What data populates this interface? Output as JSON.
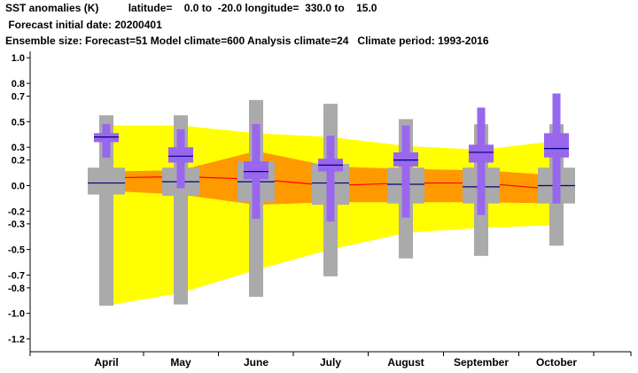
{
  "header": {
    "line1": "SST anomalies (K)          latitude=    0.0 to  -20.0 longitude=  330.0 to    15.0",
    "line2": " Forecast initial date: 20200401",
    "line3": "Ensemble size: Forecast=51 Model climate=600 Analysis climate=24   Climate period: 1993-2016"
  },
  "chart_data": {
    "type": "box",
    "title": "SST anomalies (K)",
    "xlabel": "",
    "ylabel": "",
    "categories": [
      "April",
      "May",
      "June",
      "July",
      "August",
      "September",
      "October"
    ],
    "ylim": [
      -1.3,
      1.05
    ],
    "yticks": [
      1.0,
      0.8,
      0.7,
      0.5,
      0.3,
      0.2,
      0.0,
      -0.2,
      -0.3,
      -0.5,
      -0.7,
      -0.8,
      -1.0,
      -1.2
    ],
    "ytick_labels": [
      "1.0",
      "0.8",
      "0.7",
      "0.5",
      "0.3",
      "0.2",
      "0.0",
      "-0.2",
      "-0.3",
      "-0.5",
      "-0.7",
      "-0.8",
      "-1.0",
      "-1.2"
    ],
    "colors": {
      "climate_outer": "#ffff00",
      "climate_inner": "#ff9900",
      "climate_median": "#ff0000",
      "model_climate_box": "#aaaaaa",
      "model_climate_median": "#000080",
      "forecast_box": "#9966ee",
      "forecast_median": "#000080"
    },
    "climate_band_outer": {
      "upper": [
        0.47,
        0.47,
        0.41,
        0.38,
        0.31,
        0.28,
        0.35
      ],
      "lower": [
        -0.94,
        -0.84,
        -0.66,
        -0.5,
        -0.37,
        -0.33,
        -0.31
      ]
    },
    "climate_band_inner": {
      "upper": [
        0.11,
        0.12,
        0.27,
        0.15,
        0.13,
        0.12,
        0.08
      ],
      "lower": [
        -0.04,
        -0.07,
        -0.15,
        -0.13,
        -0.13,
        -0.13,
        -0.14
      ]
    },
    "climate_median": [
      0.06,
      0.07,
      0.05,
      0.0,
      0.02,
      0.02,
      -0.03
    ],
    "model_climate": {
      "min": [
        -0.94,
        -0.93,
        -0.87,
        -0.71,
        -0.57,
        -0.55,
        -0.47
      ],
      "p10": [
        -0.76,
        -0.72,
        -0.68,
        -0.58,
        -0.45,
        -0.43,
        -0.37
      ],
      "p25": [
        -0.07,
        -0.08,
        -0.13,
        -0.15,
        -0.14,
        -0.14,
        -0.14
      ],
      "median": [
        0.02,
        0.03,
        0.03,
        0.02,
        0.01,
        -0.01,
        0.0
      ],
      "p75": [
        0.14,
        0.14,
        0.19,
        0.17,
        0.14,
        0.14,
        0.14
      ],
      "p90": [
        0.42,
        0.42,
        0.45,
        0.42,
        0.35,
        0.33,
        0.34
      ],
      "max": [
        0.55,
        0.55,
        0.67,
        0.64,
        0.52,
        0.48,
        0.48
      ]
    },
    "forecast": {
      "min": [
        0.22,
        -0.02,
        -0.26,
        -0.28,
        -0.25,
        -0.23,
        -0.14
      ],
      "p10": [
        0.22,
        -0.02,
        -0.26,
        -0.28,
        -0.25,
        -0.23,
        -0.14
      ],
      "p25": [
        0.34,
        0.18,
        0.05,
        0.11,
        0.15,
        0.18,
        0.22
      ],
      "median": [
        0.38,
        0.23,
        0.11,
        0.16,
        0.2,
        0.26,
        0.29
      ],
      "p75": [
        0.41,
        0.3,
        0.19,
        0.21,
        0.26,
        0.32,
        0.41
      ],
      "p90": [
        0.48,
        0.44,
        0.48,
        0.39,
        0.47,
        0.61,
        0.72
      ],
      "max": [
        0.48,
        0.44,
        0.48,
        0.39,
        0.47,
        0.61,
        0.72
      ]
    }
  }
}
